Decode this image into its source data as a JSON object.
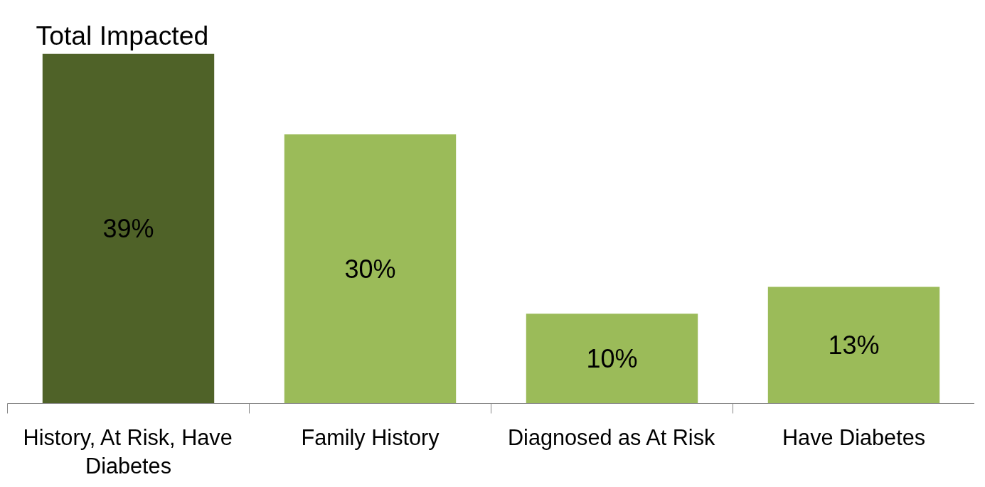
{
  "chart_data": {
    "type": "bar",
    "title": "Total Impacted",
    "categories": [
      "History, At Risk, Have Diabetes",
      "Family History",
      "Diagnosed as At Risk",
      "Have Diabetes"
    ],
    "values": [
      39,
      30,
      10,
      13
    ],
    "value_labels": [
      "39%",
      "30%",
      "10%",
      "13%"
    ],
    "colors": [
      "#4f6228",
      "#9bbb59",
      "#9bbb59",
      "#9bbb59"
    ]
  }
}
